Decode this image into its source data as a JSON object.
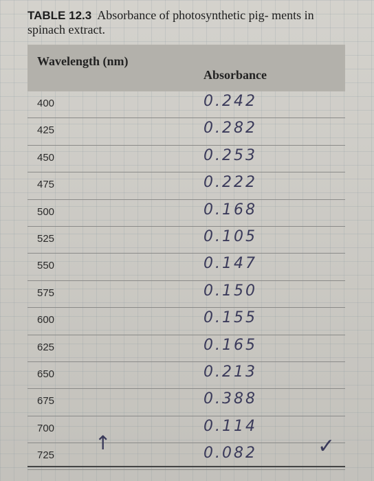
{
  "caption": {
    "label": "TABLE 12.3",
    "text": "Absorbance of photosynthetic pig- ments in spinach extract."
  },
  "table": {
    "headers": {
      "wavelength": "Wavelength (nm)",
      "absorbance": "Absorbance"
    },
    "rows": [
      {
        "wavelength": "400",
        "absorbance": "0.242"
      },
      {
        "wavelength": "425",
        "absorbance": "0.282"
      },
      {
        "wavelength": "450",
        "absorbance": "0.253"
      },
      {
        "wavelength": "475",
        "absorbance": "0.222"
      },
      {
        "wavelength": "500",
        "absorbance": "0.168"
      },
      {
        "wavelength": "525",
        "absorbance": "0.105"
      },
      {
        "wavelength": "550",
        "absorbance": "0.147"
      },
      {
        "wavelength": "575",
        "absorbance": "0.150"
      },
      {
        "wavelength": "600",
        "absorbance": "0.155"
      },
      {
        "wavelength": "625",
        "absorbance": "0.165"
      },
      {
        "wavelength": "650",
        "absorbance": "0.213"
      },
      {
        "wavelength": "675",
        "absorbance": "0.388"
      },
      {
        "wavelength": "700",
        "absorbance": "0.114"
      },
      {
        "wavelength": "725",
        "absorbance": "0.082"
      }
    ]
  },
  "marks": {
    "up_arrow": "↑",
    "check": "✓"
  }
}
